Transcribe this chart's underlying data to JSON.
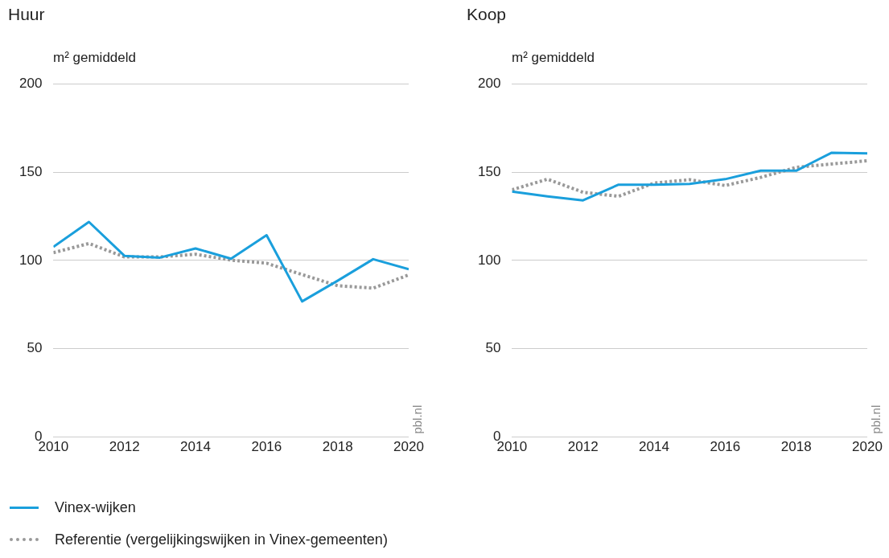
{
  "chart_data": [
    {
      "type": "line",
      "title": "Huur",
      "ylabel": "m² gemiddeld",
      "x": [
        2010,
        2011,
        2012,
        2013,
        2014,
        2015,
        2016,
        2017,
        2018,
        2019,
        2020
      ],
      "xlim": [
        2010,
        2020
      ],
      "xticks": [
        2010,
        2012,
        2014,
        2016,
        2018,
        2020
      ],
      "ylim": [
        0,
        200
      ],
      "yticks": [
        0,
        50,
        100,
        150,
        200
      ],
      "grid": "y",
      "legend": "bottom",
      "marker": "none",
      "annotations": [
        "pbl.nl"
      ],
      "series": [
        {
          "name": "Vinex-wijken",
          "color": "#1a9fdc",
          "line_style": "solid",
          "values": [
            107.7,
            121.8,
            102.6,
            101.6,
            106.8,
            101,
            114.3,
            76.8,
            88.5,
            100.7,
            95
          ]
        },
        {
          "name": "Referentie (vergelijkingswijken in Vinex-gemeenten)",
          "color": "#999999",
          "line_style": "dotted",
          "values": [
            104.4,
            109.6,
            102,
            102,
            103.5,
            100.2,
            98.4,
            92,
            85.7,
            84.3,
            91.8
          ]
        }
      ]
    },
    {
      "type": "line",
      "title": "Koop",
      "ylabel": "m² gemiddeld",
      "x": [
        2010,
        2011,
        2012,
        2013,
        2014,
        2015,
        2016,
        2017,
        2018,
        2019,
        2020
      ],
      "xlim": [
        2010,
        2020
      ],
      "xticks": [
        2010,
        2012,
        2014,
        2016,
        2018,
        2020
      ],
      "ylim": [
        0,
        200
      ],
      "yticks": [
        0,
        50,
        100,
        150,
        200
      ],
      "grid": "y",
      "legend": "bottom",
      "marker": "none",
      "annotations": [
        "pbl.nl"
      ],
      "series": [
        {
          "name": "Vinex-wijken",
          "color": "#1a9fdc",
          "line_style": "solid",
          "values": [
            139,
            136.3,
            134,
            142.9,
            142.9,
            143.3,
            146,
            150.8,
            150.8,
            161,
            160.6
          ]
        },
        {
          "name": "Referentie (vergelijkingswijken in Vinex-gemeenten)",
          "color": "#999999",
          "line_style": "dotted",
          "values": [
            140,
            146,
            138.6,
            136.3,
            143.8,
            145.7,
            142.4,
            147,
            152.7,
            154.6,
            156.4
          ]
        }
      ]
    }
  ]
}
